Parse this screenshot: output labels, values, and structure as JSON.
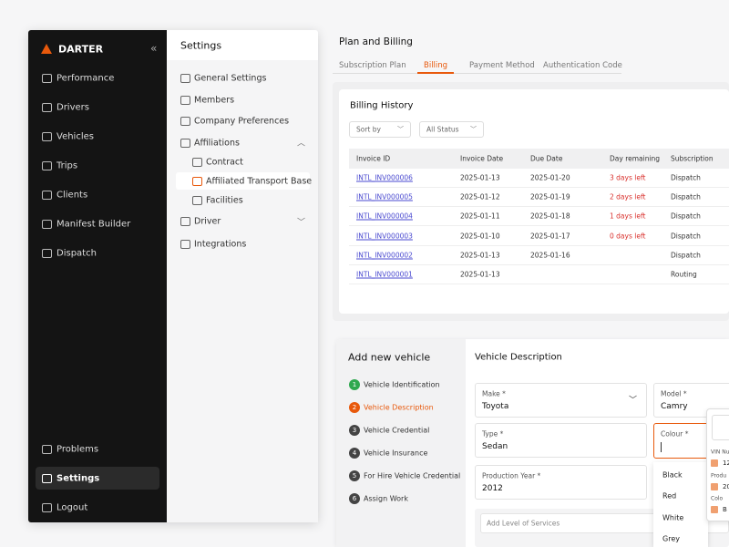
{
  "sidebar": {
    "brand": "DARTER",
    "nav": [
      "Performance",
      "Drivers",
      "Vehicles",
      "Trips",
      "Clients",
      "Manifest Builder",
      "Dispatch"
    ],
    "bottom_nav": [
      "Problems",
      "Settings",
      "Logout"
    ]
  },
  "settings_panel": {
    "title": "Settings",
    "items": [
      "General Settings",
      "Members",
      "Company Preferences",
      "Affiliations"
    ],
    "affiliation_items": [
      "Contract",
      "Affiliated Transport Base",
      "Facilities"
    ],
    "more_items": [
      "Driver",
      "Integrations"
    ]
  },
  "billing": {
    "title": "Plan and Billing",
    "tabs": [
      "Subscription Plan",
      "Billing",
      "Payment Method",
      "Authentication Code"
    ],
    "history_title": "Billing History",
    "filters": [
      "Sort by",
      "All Status"
    ],
    "table": {
      "headers": [
        "Invoice ID",
        "Invoice Date",
        "Due Date",
        "Day remaining",
        "Subscription"
      ],
      "rows": [
        [
          "INTL_INV000006",
          "2025-01-13",
          "2025-01-20",
          "3 days left",
          "Dispatch"
        ],
        [
          "INTL_INV000005",
          "2025-01-12",
          "2025-01-19",
          "2 days left",
          "Dispatch"
        ],
        [
          "INTL_INV000004",
          "2025-01-11",
          "2025-01-18",
          "1 days left",
          "Dispatch"
        ],
        [
          "INTL_INV000003",
          "2025-01-10",
          "2025-01-17",
          "0 days left",
          "Dispatch"
        ],
        [
          "INTL_INV000002",
          "2025-01-13",
          "2025-01-16",
          null,
          "Dispatch"
        ],
        [
          "INTL_INV000001",
          "2025-01-13",
          null,
          null,
          "Routing"
        ]
      ]
    }
  },
  "vehicle_form": {
    "title": "Add new vehicle",
    "steps": [
      {
        "number": 1,
        "label": "Vehicle Identification"
      },
      {
        "number": 2,
        "label": "Vehicle Description"
      },
      {
        "number": 3,
        "label": "Vehicle Credential"
      },
      {
        "number": 4,
        "label": "Vehicle Insurance"
      },
      {
        "number": 5,
        "label": "For Hire Vehicle Credential"
      },
      {
        "number": 6,
        "label": "Assign Work"
      }
    ],
    "section_title": "Vehicle Description",
    "fields": [
      {
        "label": "Make *",
        "value": "Toyota"
      },
      {
        "label": "Model *",
        "value": "Camry"
      },
      {
        "label": "Type *",
        "value": "Sedan"
      },
      {
        "label": "Colour *"
      },
      {
        "label": "Production Year *",
        "value": "2012"
      }
    ],
    "placeholder": "Add Level of Services",
    "colour_options": [
      "Black",
      "Red",
      "White",
      "Grey"
    ],
    "preview_card": {
      "labels": [
        "VIN Nu",
        "Produ",
        "Colo"
      ],
      "values": [
        "12",
        "20",
        "B"
      ]
    }
  }
}
